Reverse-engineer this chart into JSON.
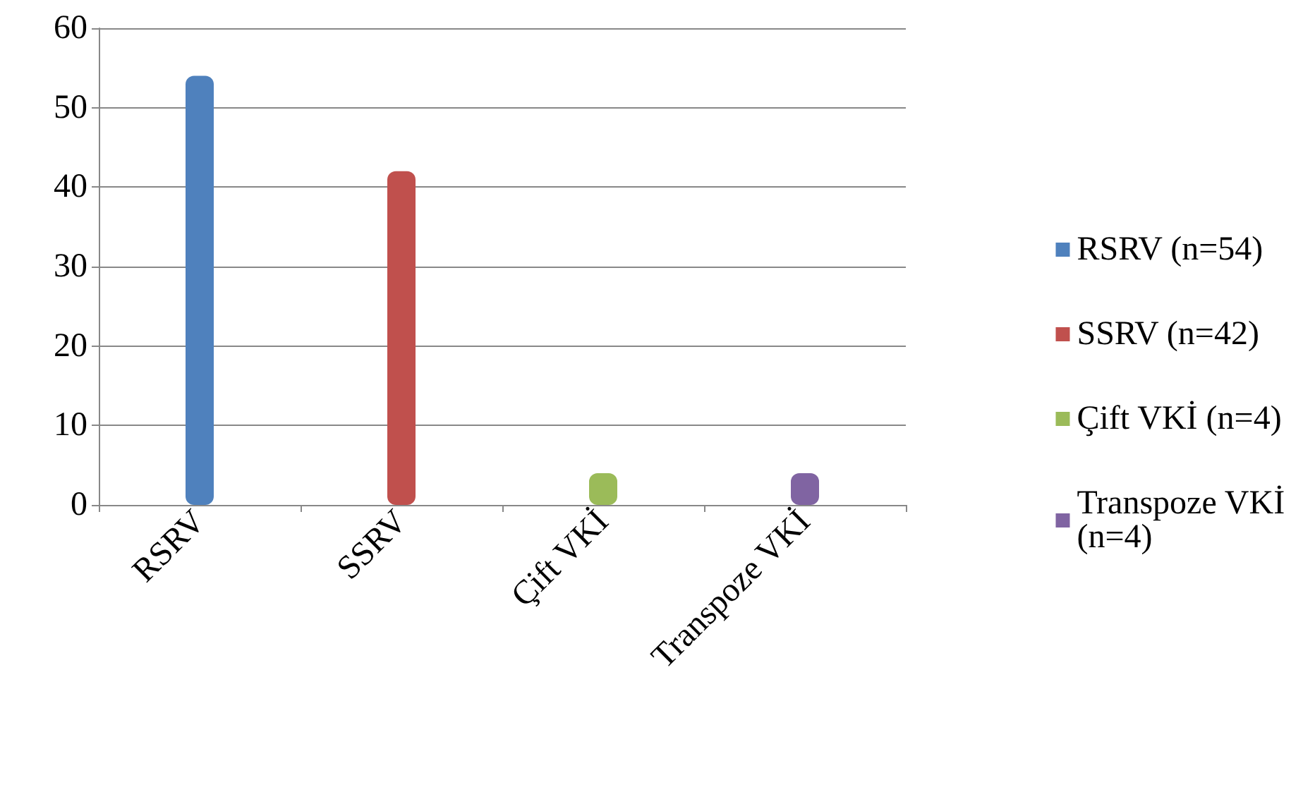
{
  "chart_data": {
    "type": "bar",
    "categories": [
      "RSRV",
      "SSRV",
      "Çift VKİ",
      "Transpoze VKİ"
    ],
    "series": [
      {
        "name": "RSRV (n=54)",
        "color": "#4f81bd",
        "values": [
          54,
          null,
          null,
          null
        ]
      },
      {
        "name": "SSRV (n=42)",
        "color": "#c0504d",
        "values": [
          null,
          42,
          null,
          null
        ]
      },
      {
        "name": "Çift VKİ (n=4)",
        "color": "#9bbb59",
        "values": [
          null,
          null,
          4,
          null
        ]
      },
      {
        "name": "Transpoze VKİ (n=4)",
        "color": "#8064a2",
        "values": [
          null,
          null,
          null,
          4
        ]
      }
    ],
    "ylim": [
      0,
      60
    ],
    "yticks": [
      0,
      10,
      20,
      30,
      40,
      50,
      60
    ],
    "grid": "y",
    "legend": "right"
  }
}
